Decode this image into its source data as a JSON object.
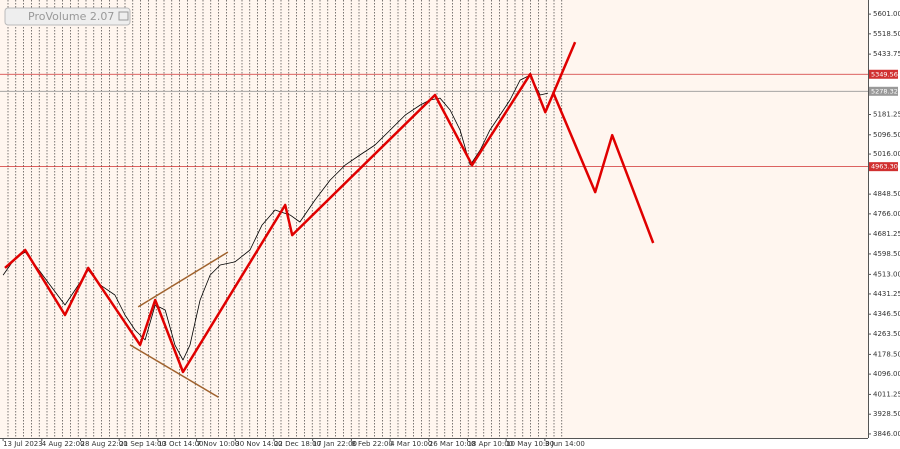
{
  "chart_data": {
    "type": "line",
    "indicator": "ProVolume 2.07",
    "xlim": [
      -0.08,
      22.35
    ],
    "xticks": [
      {
        "value": 0,
        "label": "13 Jul 2023"
      },
      {
        "value": 1,
        "label": "4 Aug 22:00"
      },
      {
        "value": 2,
        "label": "28 Aug 22:00"
      },
      {
        "value": 3,
        "label": "21 Sep 14:00"
      },
      {
        "value": 4,
        "label": "13 Oct 14:00"
      },
      {
        "value": 5,
        "label": "7 Nov 10:00"
      },
      {
        "value": 6,
        "label": "30 Nov 14:00"
      },
      {
        "value": 7,
        "label": "22 Dec 18:00"
      },
      {
        "value": 8,
        "label": "17 Jan 22:00"
      },
      {
        "value": 9,
        "label": "8 Feb 22:00"
      },
      {
        "value": 10,
        "label": "4 Mar 10:00"
      },
      {
        "value": 11,
        "label": "26 Mar 10:00"
      },
      {
        "value": 12,
        "label": "18 Apr 10:00"
      },
      {
        "value": 13,
        "label": "10 May 10:00"
      },
      {
        "value": 14,
        "label": "3 Jun 14:00"
      }
    ],
    "ylim": [
      3829,
      5660
    ],
    "yticks": [
      {
        "value": 5601,
        "label": "5601.00"
      },
      {
        "value": 5518.5,
        "label": "5518.50"
      },
      {
        "value": 5433.75,
        "label": "5433.75"
      },
      {
        "value": 5181.25,
        "label": "5181.25"
      },
      {
        "value": 5096.5,
        "label": "5096.50"
      },
      {
        "value": 5016,
        "label": "5016.00"
      },
      {
        "value": 4848.5,
        "label": "4848.50"
      },
      {
        "value": 4766,
        "label": "4766.00"
      },
      {
        "value": 4681.25,
        "label": "4681.25"
      },
      {
        "value": 4598.5,
        "label": "4598.50"
      },
      {
        "value": 4513,
        "label": "4513.00"
      },
      {
        "value": 4431.25,
        "label": "4431.25"
      },
      {
        "value": 4346.5,
        "label": "4346.50"
      },
      {
        "value": 4263.5,
        "label": "4263.50"
      },
      {
        "value": 4178.5,
        "label": "4178.50"
      },
      {
        "value": 4096,
        "label": "4096.00"
      },
      {
        "value": 4011.25,
        "label": "4011.25"
      },
      {
        "value": 3928.5,
        "label": "3928.50"
      },
      {
        "value": 3846,
        "label": "3846.00"
      }
    ],
    "price": {
      "color": "#000000",
      "x": [
        0,
        0.31,
        0.57,
        0.83,
        1.21,
        1.6,
        1.86,
        2.2,
        2.51,
        2.89,
        3.15,
        3.41,
        3.67,
        3.93,
        4.19,
        4.44,
        4.65,
        4.83,
        5.09,
        5.35,
        5.61,
        5.99,
        6.38,
        6.69,
        7.03,
        7.42,
        7.67,
        8.06,
        8.45,
        8.84,
        9.22,
        9.61,
        10.0,
        10.39,
        10.78,
        11.03,
        11.29,
        11.55,
        11.81,
        12.07,
        12.33,
        12.58,
        12.84,
        13.1,
        13.36,
        13.62,
        13.88,
        14.08
      ],
      "values": [
        4510,
        4581,
        4606,
        4552,
        4469,
        4385,
        4448,
        4531,
        4469,
        4427,
        4343,
        4280,
        4239,
        4385,
        4364,
        4218,
        4155,
        4218,
        4406,
        4510,
        4552,
        4565,
        4615,
        4719,
        4782,
        4761,
        4732,
        4824,
        4907,
        4970,
        5012,
        5054,
        5116,
        5179,
        5221,
        5242,
        5250,
        5200,
        5116,
        4970,
        5033,
        5116,
        5179,
        5242,
        5325,
        5346,
        5263,
        5271
      ]
    },
    "waves": {
      "color": "#e00000",
      "x": [
        0.05,
        0.57,
        1.6,
        2.2,
        3.54,
        3.93,
        4.65,
        7.29,
        7.47,
        11.16,
        12.12,
        13.62,
        14.01,
        14.78
      ],
      "values": [
        4540,
        4615,
        4343,
        4540,
        4218,
        4406,
        4105,
        4803,
        4677,
        5263,
        4970,
        5350,
        5191,
        5484
      ]
    },
    "forecast": {
      "color": "#e00000",
      "x": [
        14.21,
        15.3,
        15.74,
        16.8
      ],
      "values": [
        5275,
        4857,
        5095,
        4644
      ]
    },
    "channel": {
      "color": "#a0622d",
      "lines": [
        {
          "x": [
            3.49,
            5.81
          ],
          "values": [
            4377,
            4606
          ]
        },
        {
          "x": [
            3.28,
            5.56
          ],
          "values": [
            4218,
            4000
          ]
        }
      ]
    },
    "levels": [
      {
        "value": 5349.56,
        "label": "5349.56",
        "color": "#d03030"
      },
      {
        "value": 4963.3,
        "label": "4963.30",
        "color": "#d03030"
      }
    ],
    "current": {
      "value": 5278.32,
      "label": "5278.32",
      "color": "#999999"
    }
  }
}
